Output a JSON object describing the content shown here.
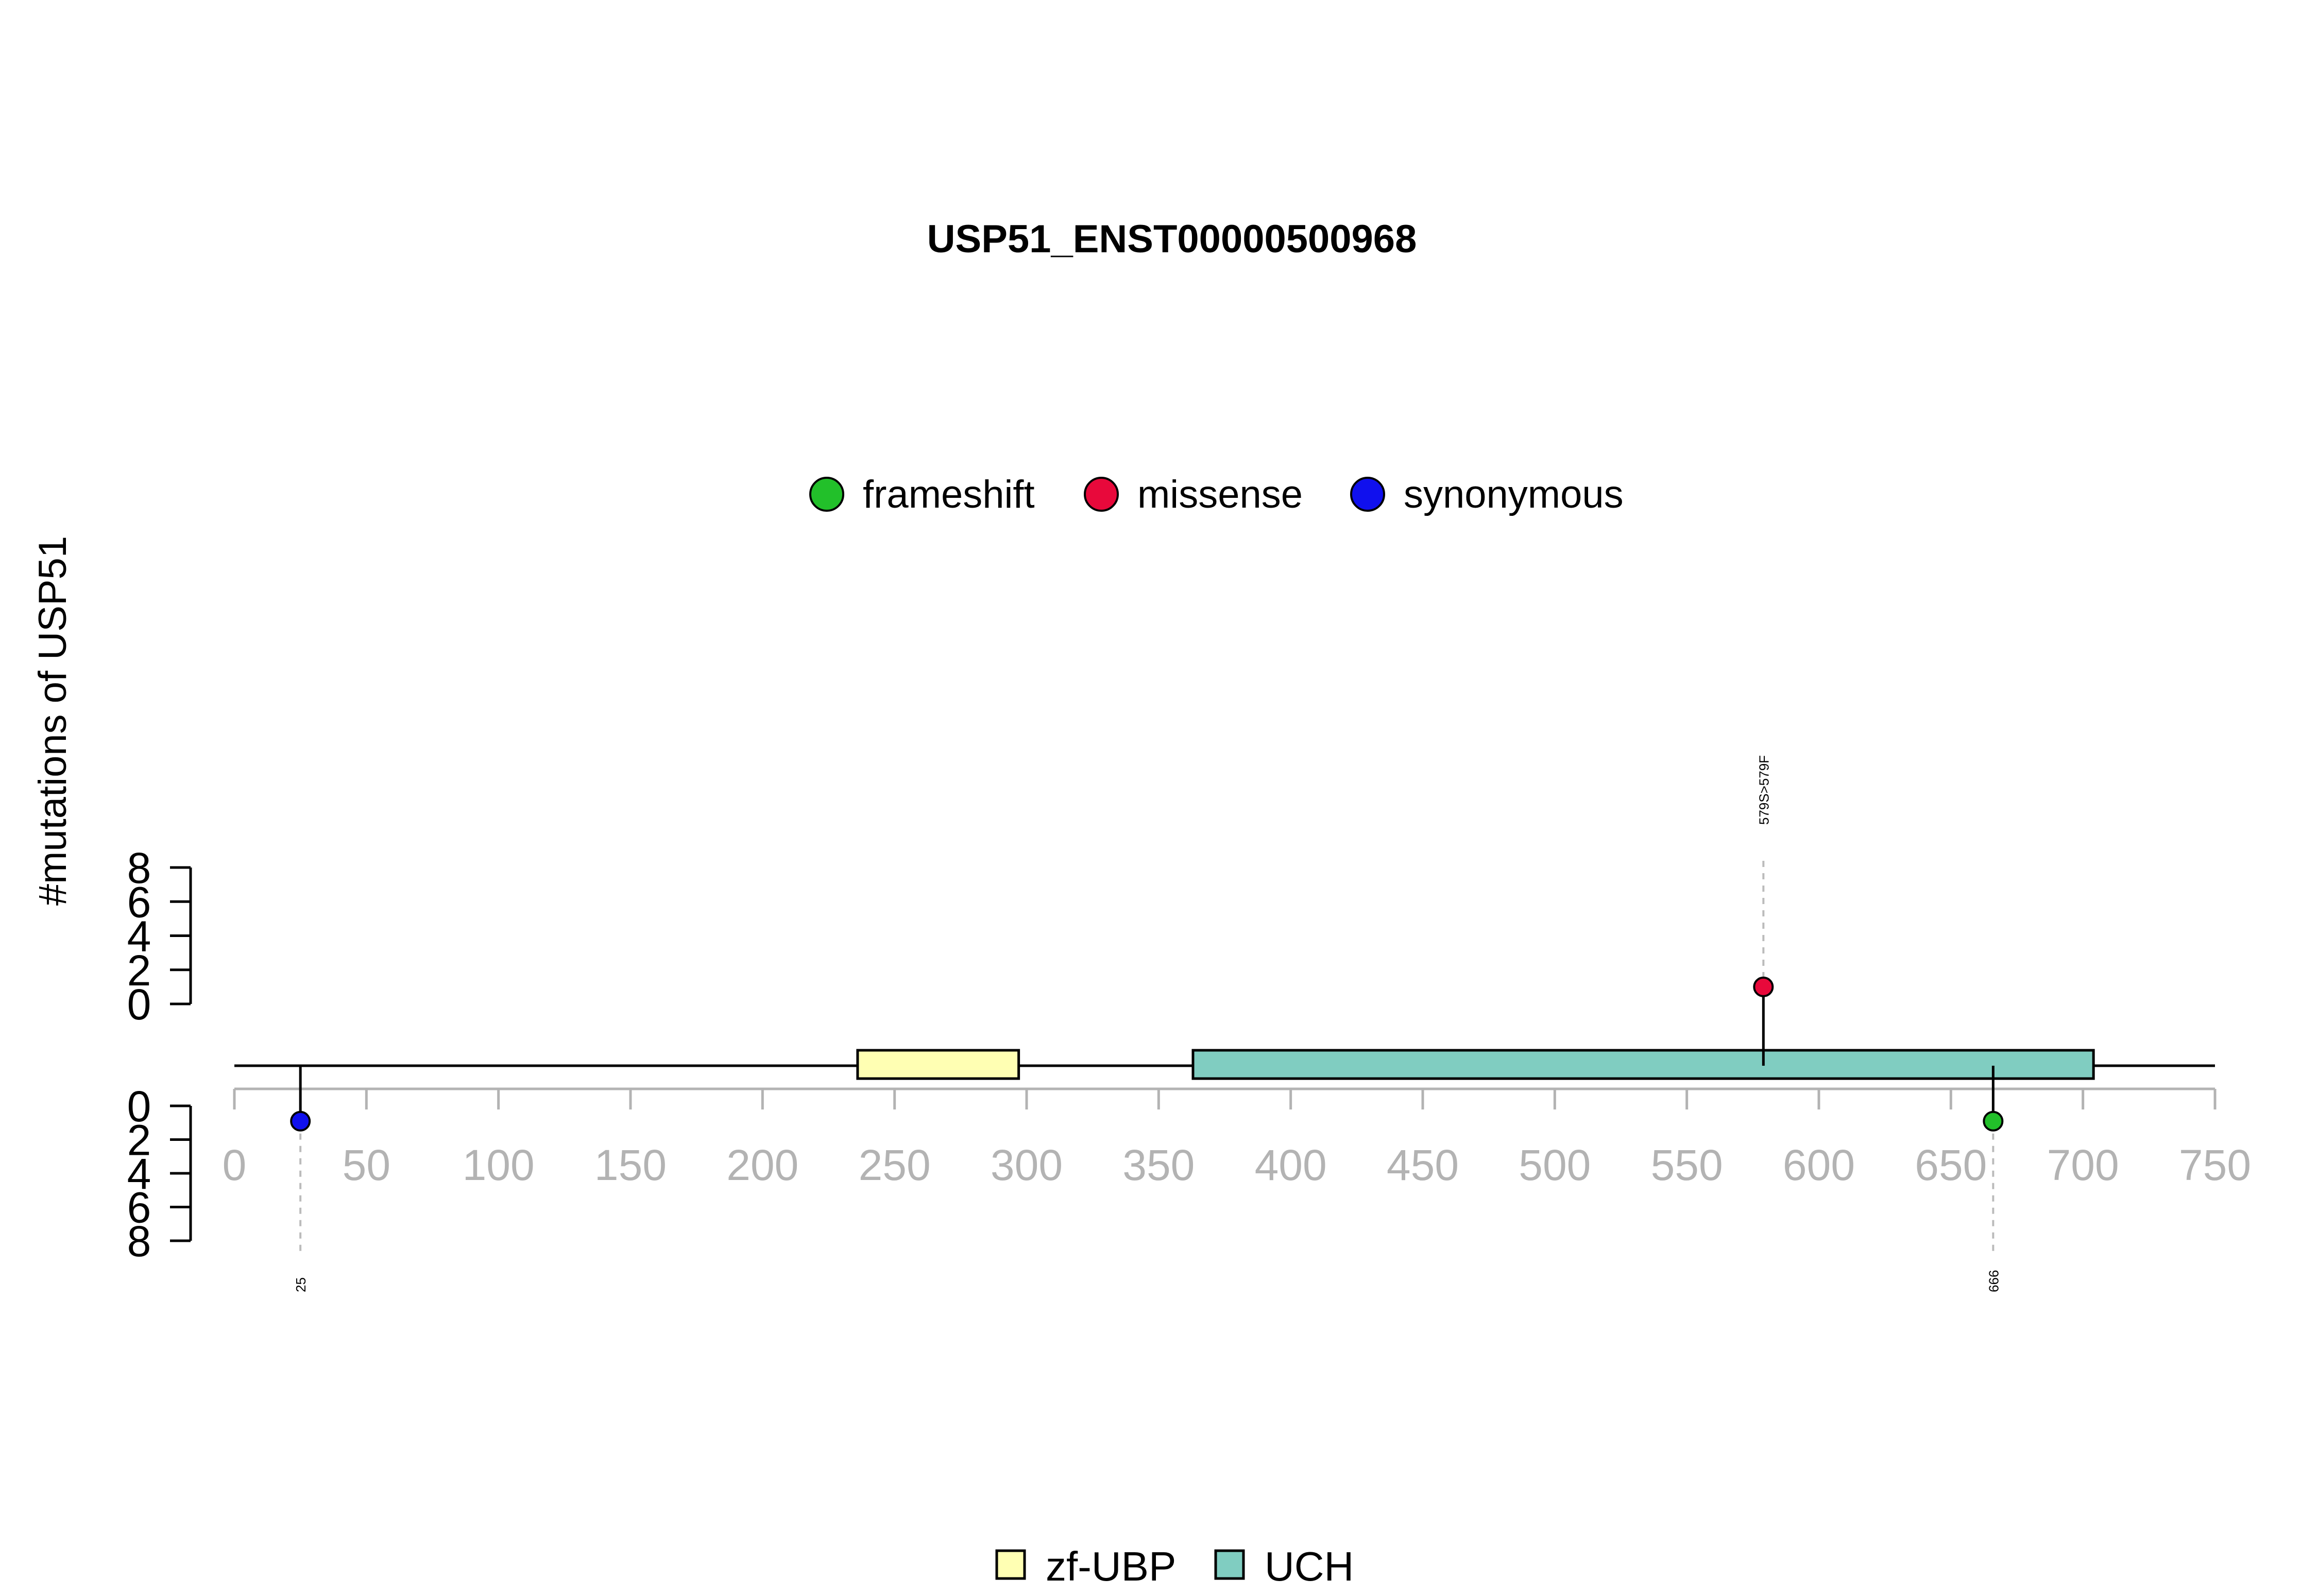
{
  "chart_data": {
    "type": "lollipop",
    "title": "USP51_ENST00000500968",
    "ylabel": "#mutations of USP51",
    "xlim": [
      0,
      750
    ],
    "x_ticks": [
      0,
      50,
      100,
      150,
      200,
      250,
      300,
      350,
      400,
      450,
      500,
      550,
      600,
      650,
      700,
      750
    ],
    "y_ticks_top": [
      0,
      2,
      4,
      6,
      8
    ],
    "y_ticks_bottom": [
      0,
      2,
      4,
      6,
      8
    ],
    "ylim": [
      0,
      8
    ],
    "protein_length": 750,
    "legend_mutations": [
      {
        "label": "frameshift",
        "color": "#22c02a"
      },
      {
        "label": "missense",
        "color": "#e8093b"
      },
      {
        "label": "synonymous",
        "color": "#1010ee"
      }
    ],
    "domains": [
      {
        "name": "zf-UBP",
        "start": 236,
        "end": 297,
        "color": "#ffffb3"
      },
      {
        "name": "UCH",
        "start": 363,
        "end": 704,
        "color": "#80cdc1"
      }
    ],
    "mutations": [
      {
        "position": 579,
        "count": 1,
        "type": "missense",
        "label": "579S>579F",
        "side": "top",
        "color": "#e8093b"
      },
      {
        "position": 25,
        "count": 1,
        "type": "synonymous",
        "label": "25",
        "side": "bottom",
        "color": "#1010ee"
      },
      {
        "position": 666,
        "count": 1,
        "type": "frameshift",
        "label": "666",
        "side": "bottom",
        "color": "#22c02a"
      }
    ],
    "colors": {
      "axis": "#000000",
      "tick_label": "#b3b3b3",
      "guide_line": "#bbbbbb"
    }
  }
}
